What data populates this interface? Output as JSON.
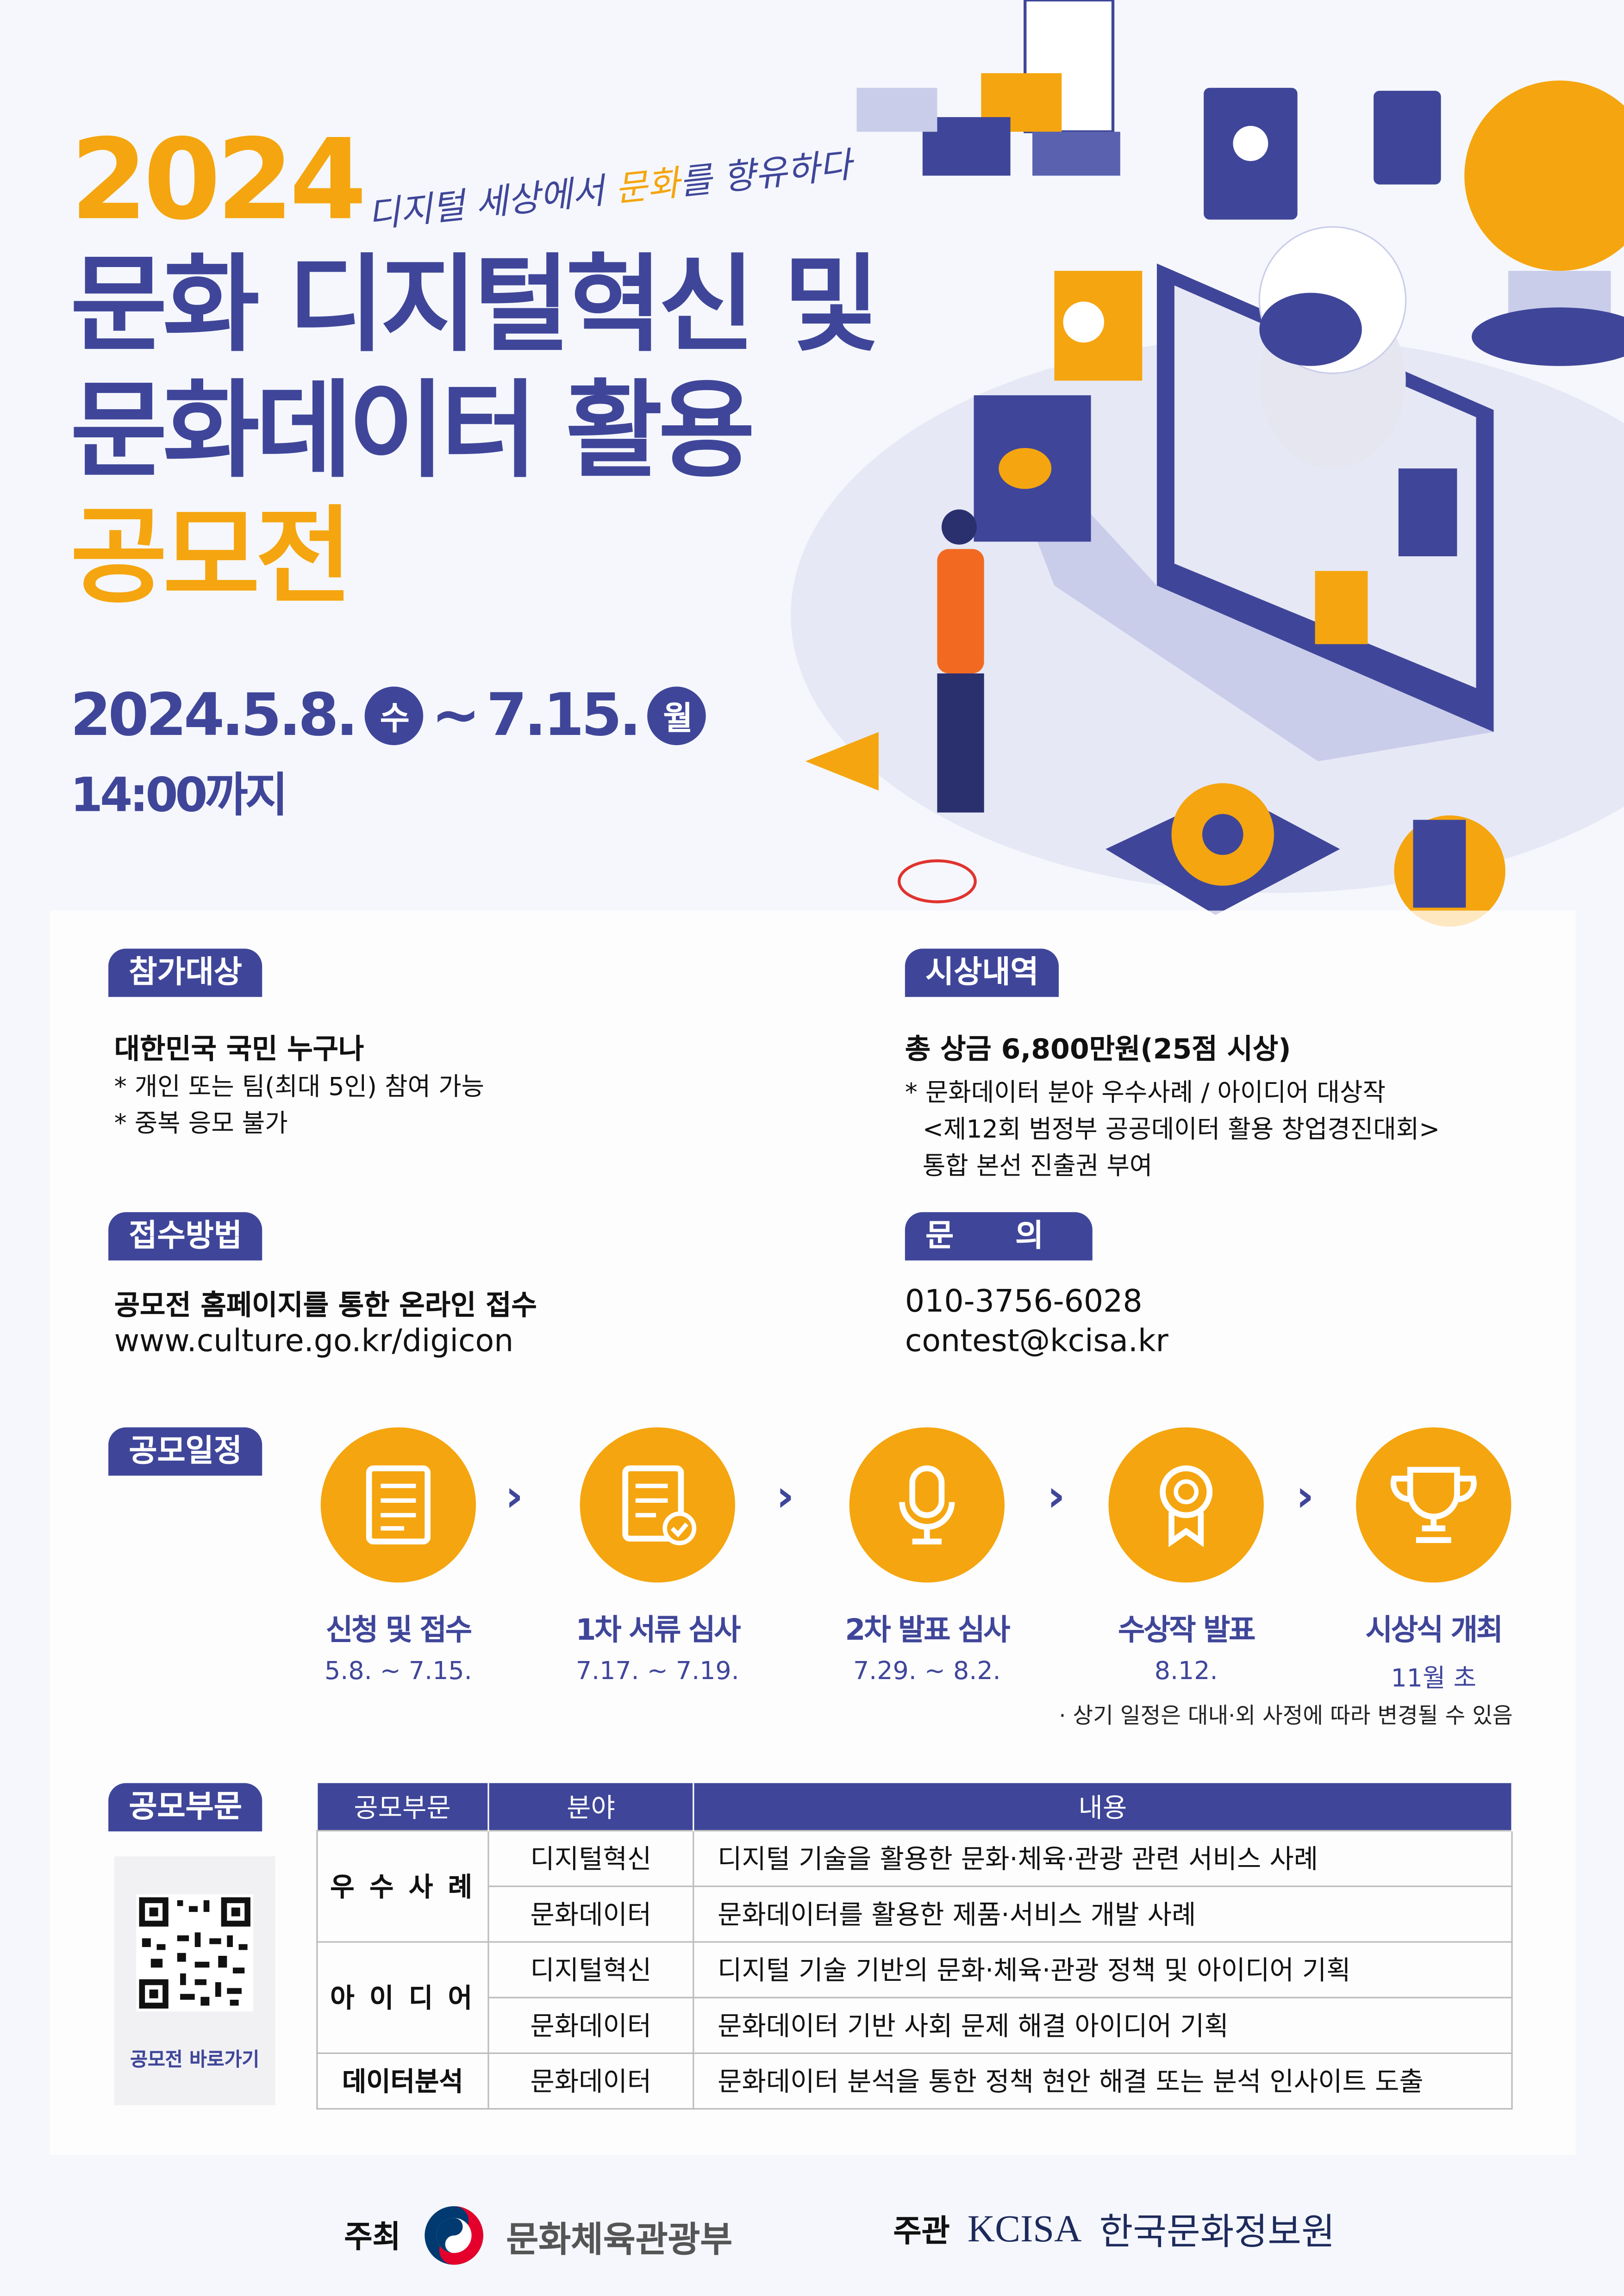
{
  "header": {
    "year": "2024",
    "tagline_pre": "디지털 세상에서 ",
    "tagline_highlight": "문화",
    "tagline_post": "를 향유하다",
    "title_line1": "문화 디지털혁신 및",
    "title_line2": "문화데이터 활용",
    "title_line3": "공모전",
    "period_start": "2024.5.8.",
    "period_start_day": "수",
    "period_sep": "~",
    "period_end": "7.15.",
    "period_end_day": "월",
    "deadline_time": "14:00까지"
  },
  "eligibility": {
    "tag": "참가대상",
    "main": "대한민국 국민 누구나",
    "notes": [
      "* 개인 또는 팀(최대 5인) 참여 가능",
      "* 중복 응모 불가"
    ]
  },
  "awards": {
    "tag": "시상내역",
    "main": "총 상금 6,800만원(25점 시상)",
    "notes": [
      "* 문화데이터 분야 우수사례 / 아이디어 대상작",
      "<제12회 범정부 공공데이터 활용 창업경진대회>",
      "통합 본선 진출권 부여"
    ]
  },
  "submission": {
    "tag": "접수방법",
    "main": "공모전 홈페이지를 통한 온라인 접수",
    "url": "www.culture.go.kr/digicon"
  },
  "inquiry": {
    "tag": "문　　의",
    "phone": "010-3756-6028",
    "email": "contest@kcisa.kr"
  },
  "schedule": {
    "tag": "공모일정",
    "steps": [
      {
        "label": "신청 및 접수",
        "date": "5.8. ~ 7.15.",
        "icon": "document-icon"
      },
      {
        "label": "1차 서류 심사",
        "date": "7.17. ~ 7.19.",
        "icon": "checked-document-icon"
      },
      {
        "label": "2차 발표 심사",
        "date": "7.29. ~ 8.2.",
        "icon": "microphone-icon"
      },
      {
        "label": "수상작 발표",
        "date": "8.12.",
        "icon": "award-ribbon-icon"
      },
      {
        "label": "시상식 개최",
        "date": "11월 초",
        "icon": "trophy-icon"
      }
    ],
    "note": "· 상기 일정은 대내·외 사정에 따라 변경될 수 있음"
  },
  "categories": {
    "tag": "공모부문",
    "qr_label": "공모전 바로가기",
    "headers": [
      "공모부문",
      "분야",
      "내용"
    ],
    "groups": [
      {
        "name": "우 수 사 례",
        "rows": [
          [
            "디지털혁신",
            "디지털 기술을 활용한 문화·체육·관광 관련 서비스 사례"
          ],
          [
            "문화데이터",
            "문화데이터를 활용한 제품·서비스 개발 사례"
          ]
        ]
      },
      {
        "name": "아 이 디 어",
        "rows": [
          [
            "디지털혁신",
            "디지털 기술 기반의 문화·체육·관광 정책 및 아이디어 기획"
          ],
          [
            "문화데이터",
            "문화데이터 기반 사회 문제 해결 아이디어 기획"
          ]
        ]
      },
      {
        "name": "데이터분석",
        "rows": [
          [
            "문화데이터",
            "문화데이터 분석을 통한 정책 현안 해결 또는 분석 인사이트 도출"
          ]
        ]
      }
    ]
  },
  "footer": {
    "host_label": "주최",
    "host_name": "문화체육관광부",
    "organizer_label": "주관",
    "organizer_logo": "KCISA",
    "organizer_name": "한국문화정보원"
  },
  "colors": {
    "indigo": "#3f4699",
    "orange": "#f5a50f",
    "background": "#f5f7fc"
  }
}
